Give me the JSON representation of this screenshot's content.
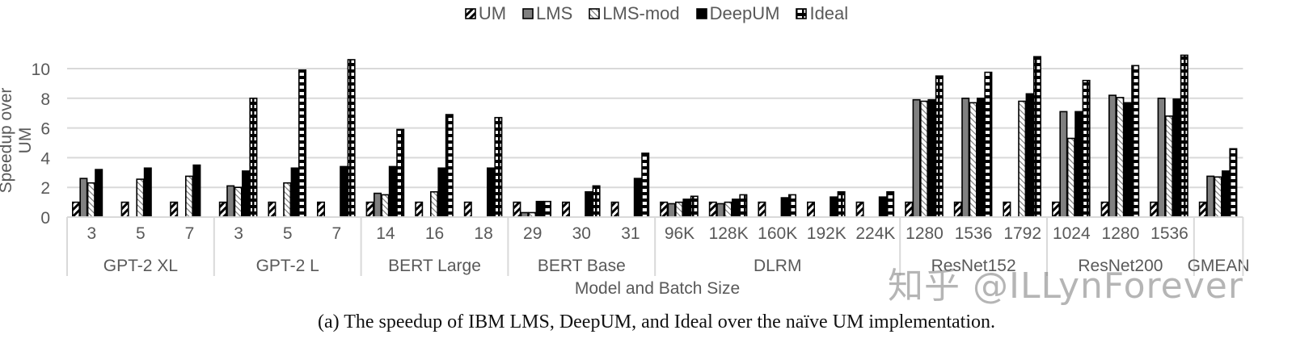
{
  "chart_data": {
    "type": "bar",
    "title": "",
    "caption": "(a) The speedup of IBM LMS, DeepUM, and Ideal over the naïve UM implementation.",
    "xlabel": "Model and Batch Size",
    "ylabel": "Speedup over UM",
    "ylim": [
      0,
      10.8
    ],
    "yticks": [
      0,
      2,
      4,
      6,
      8,
      10
    ],
    "grid": true,
    "legend_position": "top",
    "groups": [
      {
        "name": "GPT-2 XL",
        "categories": [
          "3",
          "5",
          "7"
        ]
      },
      {
        "name": "GPT-2 L",
        "categories": [
          "3",
          "5",
          "7"
        ]
      },
      {
        "name": "BERT Large",
        "categories": [
          "14",
          "16",
          "18"
        ]
      },
      {
        "name": "BERT Base",
        "categories": [
          "29",
          "30",
          "31"
        ]
      },
      {
        "name": "DLRM",
        "categories": [
          "96K",
          "128K",
          "160K",
          "192K",
          "224K"
        ]
      },
      {
        "name": "ResNet152",
        "categories": [
          "1280",
          "1536",
          "1792"
        ]
      },
      {
        "name": "ResNet200",
        "categories": [
          "1024",
          "1280",
          "1536"
        ]
      },
      {
        "name": "GMEAN",
        "categories": [
          ""
        ]
      }
    ],
    "categories": [
      "GPT-2 XL 3",
      "GPT-2 XL 5",
      "GPT-2 XL 7",
      "GPT-2 L 3",
      "GPT-2 L 5",
      "GPT-2 L 7",
      "BERT Large 14",
      "BERT Large 16",
      "BERT Large 18",
      "BERT Base 29",
      "BERT Base 30",
      "BERT Base 31",
      "DLRM 96K",
      "DLRM 128K",
      "DLRM 160K",
      "DLRM 192K",
      "DLRM 224K",
      "ResNet152 1280",
      "ResNet152 1536",
      "ResNet152 1792",
      "ResNet200 1024",
      "ResNet200 1280",
      "ResNet200 1536",
      "GMEAN"
    ],
    "series": [
      {
        "name": "UM",
        "pattern": "diag-dense",
        "values": [
          1,
          1,
          1,
          1,
          1,
          1,
          1,
          1,
          1,
          1,
          1,
          1,
          1,
          1,
          1,
          1,
          1,
          1,
          1,
          1,
          1,
          1,
          1,
          1
        ]
      },
      {
        "name": "LMS",
        "pattern": "gray",
        "values": [
          2.6,
          null,
          null,
          2.1,
          null,
          null,
          1.6,
          null,
          null,
          0.3,
          null,
          null,
          0.9,
          0.9,
          null,
          null,
          null,
          7.9,
          8.0,
          null,
          7.1,
          8.2,
          8.0,
          2.75
        ]
      },
      {
        "name": "LMS-mod",
        "pattern": "diag-light",
        "values": [
          2.3,
          2.55,
          2.75,
          2.0,
          2.3,
          null,
          1.5,
          1.7,
          null,
          0.3,
          null,
          null,
          1.0,
          1.0,
          null,
          null,
          null,
          7.8,
          7.7,
          7.8,
          5.3,
          8.05,
          6.8,
          2.7
        ]
      },
      {
        "name": "DeepUM",
        "pattern": "black",
        "values": [
          3.2,
          3.3,
          3.5,
          3.1,
          3.3,
          3.4,
          3.4,
          3.3,
          3.3,
          1.05,
          1.7,
          2.6,
          1.2,
          1.2,
          1.3,
          1.35,
          1.35,
          7.9,
          8.0,
          8.3,
          7.1,
          7.7,
          7.95,
          3.1
        ]
      },
      {
        "name": "Ideal",
        "pattern": "hstripe",
        "values": [
          null,
          null,
          null,
          8.0,
          9.9,
          10.6,
          5.9,
          6.9,
          6.7,
          1.05,
          2.1,
          4.3,
          1.4,
          1.5,
          1.5,
          1.7,
          1.7,
          9.5,
          9.75,
          10.8,
          9.2,
          10.2,
          10.9,
          4.6
        ]
      }
    ]
  },
  "legend": {
    "items": [
      {
        "label": "UM",
        "pattern": "diag-dense"
      },
      {
        "label": "LMS",
        "pattern": "gray"
      },
      {
        "label": "LMS-mod",
        "pattern": "diag-light"
      },
      {
        "label": "DeepUM",
        "pattern": "black"
      },
      {
        "label": "Ideal",
        "pattern": "hstripe"
      }
    ]
  },
  "watermark": "知乎 @ILLynForever",
  "colors": {
    "axis_text": "#595959",
    "grid": "#d9d9d9",
    "lms_gray": "#808080",
    "bar_outline": "#000000"
  }
}
